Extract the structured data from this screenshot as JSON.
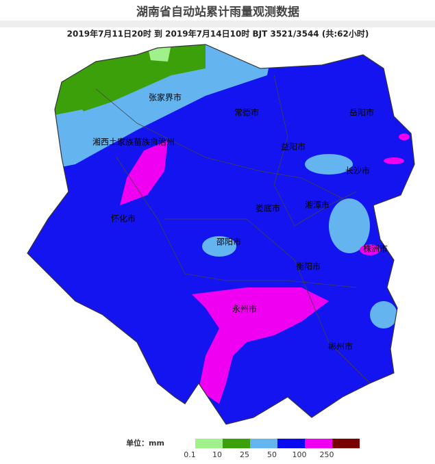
{
  "header": {
    "title": "湖南省自动站累计雨量观测数据",
    "subtitle": "2019年7月11日20时 到 2019年7月14日10时 BJT 3521/3544 (共:62小时)"
  },
  "map": {
    "cities": [
      "张家界市",
      "常德市",
      "岳阳市",
      "湘西土家族苗族自治州",
      "益阳市",
      "长沙市",
      "怀化市",
      "娄底市",
      "湘潭市",
      "邵阳市",
      "株洲市",
      "衡阳市",
      "永州市",
      "郴州市"
    ]
  },
  "legend": {
    "unit": "单位：mm",
    "bins": [
      0.1,
      10,
      25,
      50,
      100,
      250
    ],
    "colors": [
      "#a0f08c",
      "#3ca00a",
      "#64b4f0",
      "#0a0af0",
      "#f000f0",
      "#780000"
    ]
  }
}
